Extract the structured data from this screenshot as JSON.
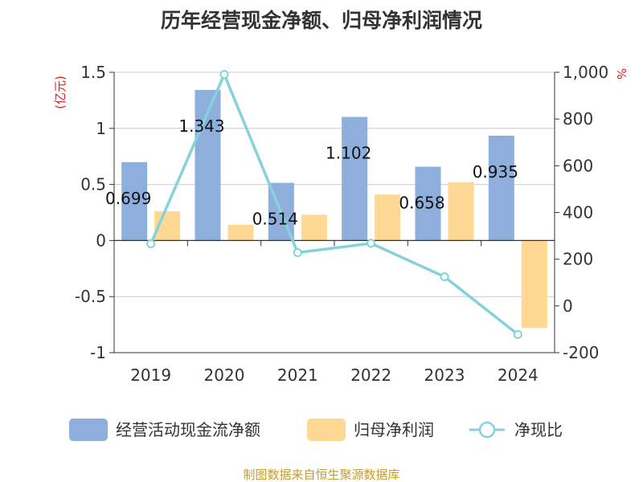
{
  "chart_data": {
    "type": "bar",
    "title": "历年经营现金净额、归母净利润情况",
    "categories": [
      "2019",
      "2020",
      "2021",
      "2022",
      "2023",
      "2024"
    ],
    "series": [
      {
        "name": "经营活动现金流净额",
        "type": "bar",
        "axis": "left",
        "color": "#8eaedc",
        "values": [
          0.699,
          1.343,
          0.514,
          1.102,
          0.658,
          0.935
        ]
      },
      {
        "name": "归母净利润",
        "type": "bar",
        "axis": "left",
        "color": "#ffd993",
        "values": [
          0.26,
          0.14,
          0.23,
          0.41,
          0.52,
          -0.78
        ]
      },
      {
        "name": "净现比",
        "type": "line",
        "axis": "right",
        "color": "#85d3da",
        "values": [
          266,
          991,
          228,
          268,
          125,
          -122
        ]
      }
    ],
    "data_labels": [
      "0.699",
      "1.343",
      "0.514",
      "1.102",
      "0.658",
      "0.935"
    ],
    "left_axis": {
      "unit": "(亿元)",
      "min": -1,
      "max": 1.5,
      "ticks": [
        1.5,
        1,
        0.5,
        0,
        -0.5,
        -1
      ],
      "tick_labels": [
        "1.5",
        "1",
        "0.5",
        "0",
        "-0.5",
        "-1"
      ]
    },
    "right_axis": {
      "unit": "%",
      "min": -200,
      "max": 1000,
      "ticks": [
        1000,
        800,
        600,
        400,
        200,
        0,
        -200
      ],
      "tick_labels": [
        "1,000",
        "800",
        "600",
        "400",
        "200",
        "0",
        "-200"
      ]
    },
    "grid": true,
    "legend_position": "bottom",
    "source": "制图数据来自恒生聚源数据库"
  }
}
